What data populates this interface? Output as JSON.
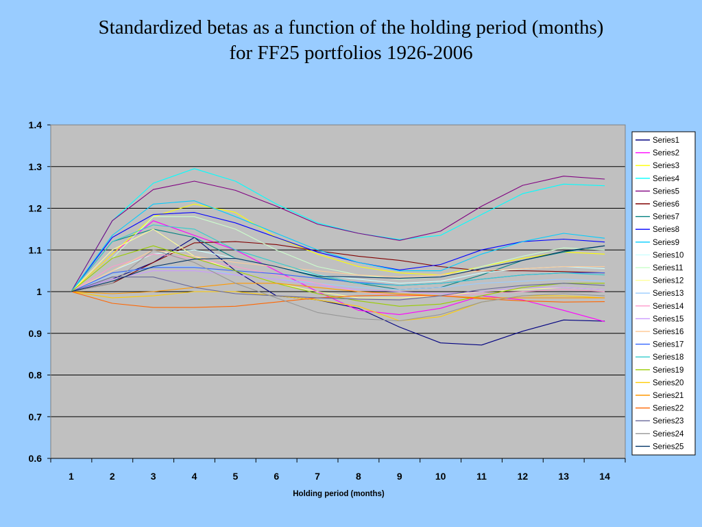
{
  "slide": {
    "title_line1": "Standardized betas as a function of the holding period (months)",
    "title_line2": "for FF25 portfolios 1926-2006",
    "background": "#99ccff"
  },
  "chart_data": {
    "type": "line",
    "title": "Standardized betas as a function of the holding period (months) for FF25 portfolios 1926-2006",
    "xlabel": "Holding period (months)",
    "ylabel": "",
    "x": [
      1,
      2,
      3,
      4,
      5,
      6,
      7,
      8,
      9,
      10,
      11,
      12,
      13,
      14
    ],
    "ylim": [
      0.6,
      1.4
    ],
    "yticks": [
      "0.6",
      "0.7",
      "0.8",
      "0.9",
      "1",
      "1.1",
      "1.2",
      "1.3",
      "1.4"
    ],
    "grid": true,
    "legend": "right",
    "plot_background": "#c0c0c0",
    "series": [
      {
        "name": "Series1",
        "color": "#000080",
        "values": [
          1,
          1.03,
          1.07,
          1.13,
          1.05,
          0.99,
          0.98,
          0.96,
          0.915,
          0.877,
          0.872,
          0.905,
          0.932,
          0.929
        ]
      },
      {
        "name": "Series2",
        "color": "#ff00ff",
        "values": [
          1,
          1.09,
          1.17,
          1.135,
          1.1,
          1.05,
          1.0,
          0.955,
          0.945,
          0.96,
          0.99,
          0.98,
          0.955,
          0.928
        ]
      },
      {
        "name": "Series3",
        "color": "#ffff00",
        "values": [
          1,
          1.09,
          1.18,
          1.21,
          1.19,
          1.13,
          1.09,
          1.06,
          1.045,
          1.04,
          1.06,
          1.08,
          1.095,
          1.09
        ]
      },
      {
        "name": "Series4",
        "color": "#00ffff",
        "values": [
          1,
          1.17,
          1.26,
          1.295,
          1.265,
          1.21,
          1.165,
          1.14,
          1.125,
          1.135,
          1.185,
          1.235,
          1.258,
          1.254
        ]
      },
      {
        "name": "Series5",
        "color": "#800080",
        "values": [
          1,
          1.17,
          1.245,
          1.265,
          1.243,
          1.205,
          1.162,
          1.14,
          1.123,
          1.145,
          1.205,
          1.255,
          1.277,
          1.27
        ]
      },
      {
        "name": "Series6",
        "color": "#800000",
        "values": [
          1,
          1.02,
          1.07,
          1.117,
          1.12,
          1.113,
          1.098,
          1.085,
          1.075,
          1.06,
          1.05,
          1.05,
          1.048,
          1.045
        ]
      },
      {
        "name": "Series7",
        "color": "#008080",
        "values": [
          1,
          1.12,
          1.15,
          1.13,
          1.08,
          1.06,
          1.035,
          1.02,
          1.005,
          1.01,
          1.04,
          1.075,
          1.095,
          1.11
        ]
      },
      {
        "name": "Series8",
        "color": "#0000ff",
        "values": [
          1,
          1.13,
          1.185,
          1.19,
          1.165,
          1.13,
          1.095,
          1.07,
          1.052,
          1.065,
          1.1,
          1.12,
          1.126,
          1.119
        ]
      },
      {
        "name": "Series9",
        "color": "#00ccff",
        "values": [
          1,
          1.135,
          1.21,
          1.218,
          1.18,
          1.14,
          1.1,
          1.07,
          1.05,
          1.05,
          1.09,
          1.12,
          1.14,
          1.128
        ]
      },
      {
        "name": "Series10",
        "color": "#ccffff",
        "values": [
          1,
          1.05,
          1.09,
          1.1,
          1.08,
          1.06,
          1.04,
          1.03,
          1.02,
          1.025,
          1.045,
          1.055,
          1.06,
          1.055
        ]
      },
      {
        "name": "Series11",
        "color": "#ccffcc",
        "values": [
          1,
          1.08,
          1.18,
          1.18,
          1.15,
          1.1,
          1.06,
          1.04,
          1.03,
          1.035,
          1.06,
          1.085,
          1.105,
          1.1
        ]
      },
      {
        "name": "Series12",
        "color": "#ffff99",
        "values": [
          1,
          1.1,
          1.15,
          1.085,
          1.05,
          1.02,
          1.0,
          0.985,
          0.985,
          0.99,
          1.0,
          1.005,
          1.01,
          1.005
        ]
      },
      {
        "name": "Series13",
        "color": "#99ccff",
        "values": [
          1,
          1.04,
          1.06,
          1.06,
          1.04,
          1.03,
          1.02,
          1.01,
          1.005,
          1.01,
          1.02,
          1.025,
          1.03,
          1.025
        ]
      },
      {
        "name": "Series14",
        "color": "#ff99cc",
        "values": [
          1,
          1.06,
          1.09,
          1.08,
          1.06,
          1.04,
          1.02,
          1.0,
          0.99,
          0.99,
          0.995,
          1.0,
          1.005,
          1.0
        ]
      },
      {
        "name": "Series15",
        "color": "#cc99ff",
        "values": [
          1,
          1.03,
          1.05,
          1.05,
          1.04,
          1.03,
          1.015,
          1.005,
          1.0,
          0.995,
          1.0,
          1.01,
          1.01,
          1.005
        ]
      },
      {
        "name": "Series16",
        "color": "#ffcc99",
        "values": [
          1,
          1.05,
          1.1,
          1.085,
          1.07,
          1.06,
          1.05,
          1.04,
          1.035,
          1.04,
          1.05,
          1.055,
          1.06,
          1.06
        ]
      },
      {
        "name": "Series17",
        "color": "#3366ff",
        "values": [
          1,
          1.045,
          1.058,
          1.058,
          1.05,
          1.043,
          1.032,
          1.022,
          1.015,
          1.02,
          1.03,
          1.04,
          1.045,
          1.045
        ]
      },
      {
        "name": "Series18",
        "color": "#33cccc",
        "values": [
          1,
          1.12,
          1.16,
          1.15,
          1.1,
          1.07,
          1.04,
          1.02,
          1.015,
          1.02,
          1.03,
          1.04,
          1.045,
          1.04
        ]
      },
      {
        "name": "Series19",
        "color": "#99cc00",
        "values": [
          1,
          1.08,
          1.11,
          1.08,
          1.05,
          1.02,
          0.995,
          0.978,
          0.965,
          0.97,
          0.99,
          1.01,
          1.02,
          1.02
        ]
      },
      {
        "name": "Series20",
        "color": "#ffcc00",
        "values": [
          1,
          0.985,
          0.99,
          1.0,
          1.0,
          0.99,
          0.98,
          0.965,
          0.93,
          0.94,
          0.975,
          0.99,
          0.99,
          0.985
        ]
      },
      {
        "name": "Series21",
        "color": "#ff9900",
        "values": [
          1,
          0.995,
          1.0,
          1.01,
          1.02,
          1.02,
          1.01,
          1.0,
          0.995,
          0.99,
          0.985,
          0.985,
          0.985,
          0.985
        ]
      },
      {
        "name": "Series22",
        "color": "#ff6600",
        "values": [
          1,
          0.972,
          0.962,
          0.962,
          0.965,
          0.975,
          0.985,
          0.99,
          0.992,
          0.99,
          0.983,
          0.978,
          0.975,
          0.976
        ]
      },
      {
        "name": "Series23",
        "color": "#666699",
        "values": [
          1,
          1.035,
          1.035,
          1.01,
          0.995,
          0.99,
          0.985,
          0.982,
          0.98,
          0.99,
          1.005,
          1.015,
          1.02,
          1.015
        ]
      },
      {
        "name": "Series24",
        "color": "#969696",
        "values": [
          1,
          1.02,
          1.1,
          1.07,
          1.02,
          0.985,
          0.95,
          0.935,
          0.93,
          0.945,
          0.975,
          0.99,
          0.995,
          0.99
        ]
      },
      {
        "name": "Series25",
        "color": "#003366",
        "values": [
          1,
          1.025,
          1.06,
          1.078,
          1.08,
          1.06,
          1.037,
          1.035,
          1.032,
          1.035,
          1.055,
          1.075,
          1.097,
          1.11
        ]
      }
    ]
  }
}
